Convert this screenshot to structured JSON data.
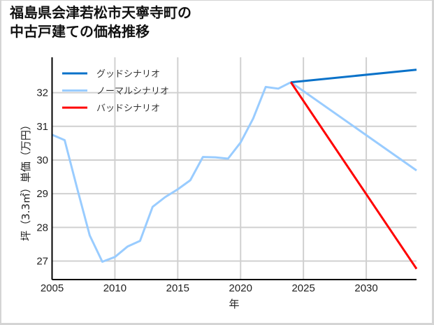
{
  "title": {
    "line1": "福島県会津若松市天寧寺町の",
    "line2": "中古戸建ての価格推移"
  },
  "chart_data": {
    "type": "line",
    "title": "福島県会津若松市天寧寺町の中古戸建ての価格推移",
    "xlabel": "年",
    "ylabel": "坪（3.3㎡）単価（万円）",
    "xlim": [
      2005,
      2034
    ],
    "ylim": [
      26.45,
      33.05
    ],
    "x_ticks": [
      2005,
      2010,
      2015,
      2020,
      2025,
      2030
    ],
    "y_ticks": [
      27,
      28,
      29,
      30,
      31,
      32
    ],
    "grid": true,
    "legend_position": "upper left",
    "series": [
      {
        "name": "グッドシナリオ",
        "color": "#0a72c9",
        "x": [
          2024,
          2034
        ],
        "values": [
          32.31,
          32.68
        ]
      },
      {
        "name": "ノーマルシナリオ",
        "color": "#99ccff",
        "x": [
          2005,
          2006,
          2007,
          2008,
          2009,
          2010,
          2011,
          2012,
          2013,
          2014,
          2015,
          2016,
          2017,
          2018,
          2019,
          2020,
          2021,
          2022,
          2023,
          2024,
          2034
        ],
        "values": [
          30.75,
          30.59,
          29.15,
          27.76,
          26.98,
          27.12,
          27.43,
          27.6,
          28.61,
          28.9,
          29.13,
          29.4,
          30.09,
          30.08,
          30.04,
          30.52,
          31.23,
          32.17,
          32.12,
          32.31,
          29.69
        ]
      },
      {
        "name": "バッドシナリオ",
        "color": "#ff0000",
        "x": [
          2024,
          2034
        ],
        "values": [
          32.31,
          26.77
        ]
      }
    ]
  }
}
